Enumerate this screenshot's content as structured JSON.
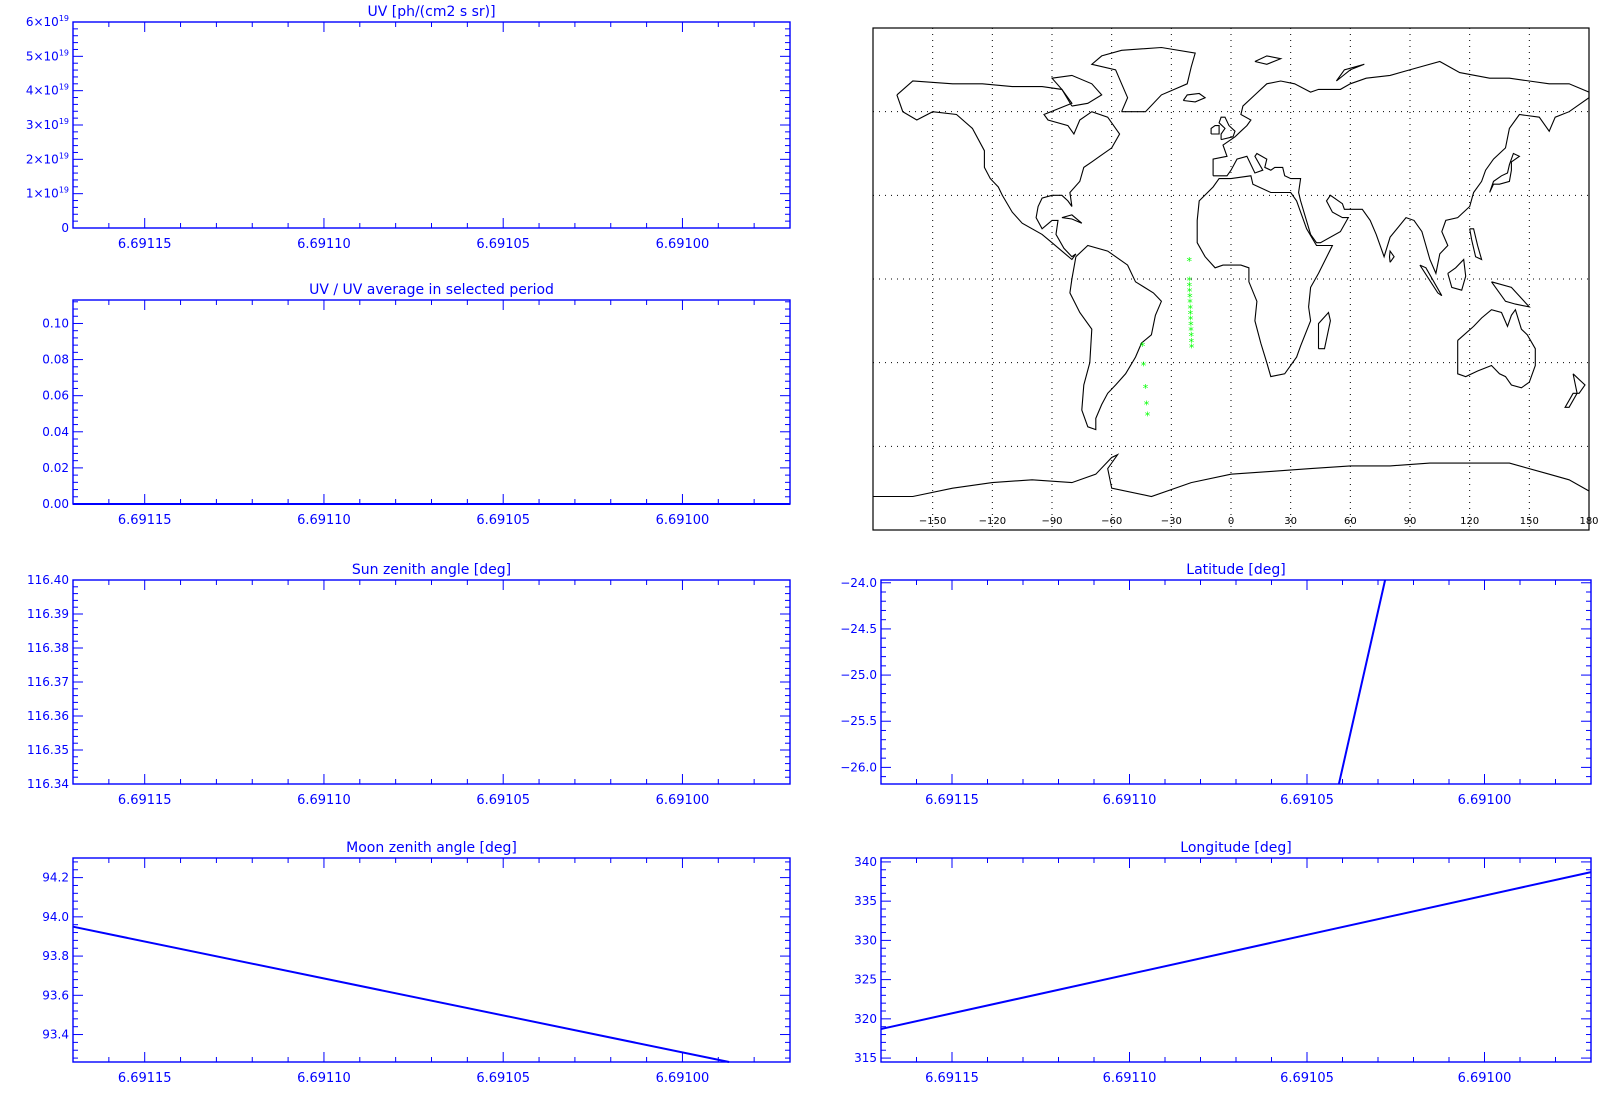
{
  "colors": {
    "axis": "#0000ff",
    "line": "#0000ff",
    "map_lines": "#000000",
    "track": "#00ff00"
  },
  "chart_data": [
    {
      "id": "uv",
      "type": "line",
      "title": "UV [ph/(cm2 s sr)]",
      "xlim": [
        6.69117,
        6.69097
      ],
      "ylim": [
        0,
        6e+19
      ],
      "xticks": [
        "6.69115",
        "6.69110",
        "6.69105",
        "6.69100"
      ],
      "xtick_values": [
        6.69115,
        6.6911,
        6.69105,
        6.691
      ],
      "yticks": [
        {
          "v": 6e+19,
          "m": "6",
          "e": "19"
        },
        {
          "v": 5e+19,
          "m": "5",
          "e": "19"
        },
        {
          "v": 4e+19,
          "m": "4",
          "e": "19"
        },
        {
          "v": 3e+19,
          "m": "3",
          "e": "19"
        },
        {
          "v": 2e+19,
          "m": "2",
          "e": "19"
        },
        {
          "v": 1e+19,
          "m": "1",
          "e": "19"
        },
        {
          "v": 0,
          "m": "0",
          "e": ""
        }
      ],
      "series": []
    },
    {
      "id": "ratio",
      "type": "line",
      "title": "UV / UV average in selected period",
      "xlim": [
        6.69117,
        6.69097
      ],
      "ylim": [
        0,
        0.113
      ],
      "xticks": [
        "6.69115",
        "6.69110",
        "6.69105",
        "6.69100"
      ],
      "xtick_values": [
        6.69115,
        6.6911,
        6.69105,
        6.691
      ],
      "yticks": [
        {
          "v": 0.1,
          "label": "0.10"
        },
        {
          "v": 0.08,
          "label": "0.08"
        },
        {
          "v": 0.06,
          "label": "0.06"
        },
        {
          "v": 0.04,
          "label": "0.04"
        },
        {
          "v": 0.02,
          "label": "0.02"
        },
        {
          "v": 0,
          "label": "0.00"
        }
      ],
      "series": [
        {
          "x": [
            6.69117,
            6.69097
          ],
          "y": [
            0,
            0
          ]
        }
      ]
    },
    {
      "id": "sun",
      "type": "line",
      "title": "Sun zenith angle [deg]",
      "xlim": [
        6.69117,
        6.69097
      ],
      "ylim": [
        116.34,
        116.4
      ],
      "xticks": [
        "6.69115",
        "6.69110",
        "6.69105",
        "6.69100"
      ],
      "xtick_values": [
        6.69115,
        6.6911,
        6.69105,
        6.691
      ],
      "yticks": [
        {
          "v": 116.4,
          "label": "116.40"
        },
        {
          "v": 116.39,
          "label": "116.39"
        },
        {
          "v": 116.38,
          "label": "116.38"
        },
        {
          "v": 116.37,
          "label": "116.37"
        },
        {
          "v": 116.36,
          "label": "116.36"
        },
        {
          "v": 116.35,
          "label": "116.35"
        },
        {
          "v": 116.34,
          "label": "116.34"
        }
      ],
      "series": []
    },
    {
      "id": "lat",
      "type": "line",
      "title": "Latitude [deg]",
      "xlim": [
        6.69117,
        6.69097
      ],
      "ylim": [
        -26.18,
        -23.97
      ],
      "xticks": [
        "6.69115",
        "6.69110",
        "6.69105",
        "6.69100"
      ],
      "xtick_values": [
        6.69115,
        6.6911,
        6.69105,
        6.691
      ],
      "yticks": [
        {
          "v": -24,
          "label": "−24.0"
        },
        {
          "v": -24.5,
          "label": "−24.5"
        },
        {
          "v": -25,
          "label": "−25.0"
        },
        {
          "v": -25.5,
          "label": "−25.5"
        },
        {
          "v": -26,
          "label": "−26.0"
        }
      ],
      "series": [
        {
          "x": [
            6.691041,
            6.691028
          ],
          "y": [
            -26.18,
            -23.97
          ]
        }
      ]
    },
    {
      "id": "moon",
      "type": "line",
      "title": "Moon zenith angle [deg]",
      "xlim": [
        6.69117,
        6.69097
      ],
      "ylim": [
        93.26,
        94.3
      ],
      "xticks": [
        "6.69115",
        "6.69110",
        "6.69105",
        "6.69100"
      ],
      "xtick_values": [
        6.69115,
        6.6911,
        6.69105,
        6.691
      ],
      "yticks": [
        {
          "v": 94.2,
          "label": "94.2"
        },
        {
          "v": 94.0,
          "label": "94.0"
        },
        {
          "v": 93.8,
          "label": "93.8"
        },
        {
          "v": 93.6,
          "label": "93.6"
        },
        {
          "v": 93.4,
          "label": "93.4"
        }
      ],
      "series": [
        {
          "x": [
            6.69117,
            6.690987
          ],
          "y": [
            93.95,
            93.26
          ]
        }
      ]
    },
    {
      "id": "lon",
      "type": "line",
      "title": "Longitude [deg]",
      "xlim": [
        6.69117,
        6.69097
      ],
      "ylim": [
        314.5,
        340.5
      ],
      "xticks": [
        "6.69115",
        "6.69110",
        "6.69105",
        "6.69100"
      ],
      "xtick_values": [
        6.69115,
        6.6911,
        6.69105,
        6.691
      ],
      "yticks": [
        {
          "v": 340,
          "label": "340"
        },
        {
          "v": 335,
          "label": "335"
        },
        {
          "v": 330,
          "label": "330"
        },
        {
          "v": 325,
          "label": "325"
        },
        {
          "v": 320,
          "label": "320"
        },
        {
          "v": 315,
          "label": "315"
        }
      ],
      "series": [
        {
          "x": [
            6.69117,
            6.69097
          ],
          "y": [
            318.7,
            338.7
          ]
        }
      ]
    },
    {
      "id": "map",
      "type": "scatter",
      "xlim": [
        -180,
        180
      ],
      "ylim": [
        -90,
        90
      ],
      "xticks": [
        "−150",
        "−120",
        "−90",
        "−60",
        "−30",
        "0",
        "30",
        "60",
        "90",
        "120",
        "150",
        "180"
      ],
      "xtick_values": [
        -150,
        -120,
        -90,
        -60,
        -30,
        0,
        30,
        60,
        90,
        120,
        150,
        180
      ],
      "grid": true,
      "track": [
        {
          "lon": -21.0,
          "lat": 6.5
        },
        {
          "lon": -21.0,
          "lat": -0.5
        },
        {
          "lon": -20.9,
          "lat": -2.5
        },
        {
          "lon": -20.8,
          "lat": -4.5
        },
        {
          "lon": -20.7,
          "lat": -6.5
        },
        {
          "lon": -20.6,
          "lat": -8.5
        },
        {
          "lon": -20.5,
          "lat": -10.5
        },
        {
          "lon": -20.4,
          "lat": -12.5
        },
        {
          "lon": -20.3,
          "lat": -14.5
        },
        {
          "lon": -20.2,
          "lat": -16.5
        },
        {
          "lon": -20.1,
          "lat": -18.5
        },
        {
          "lon": -20.0,
          "lat": -20.5
        },
        {
          "lon": -19.9,
          "lat": -22.5
        },
        {
          "lon": -19.8,
          "lat": -24.5
        },
        {
          "lon": -44.5,
          "lat": -24.0
        },
        {
          "lon": -44.0,
          "lat": -31.0
        },
        {
          "lon": -43.0,
          "lat": -39.0
        },
        {
          "lon": -42.5,
          "lat": -45.0
        },
        {
          "lon": -42.0,
          "lat": -49.0
        }
      ]
    }
  ]
}
